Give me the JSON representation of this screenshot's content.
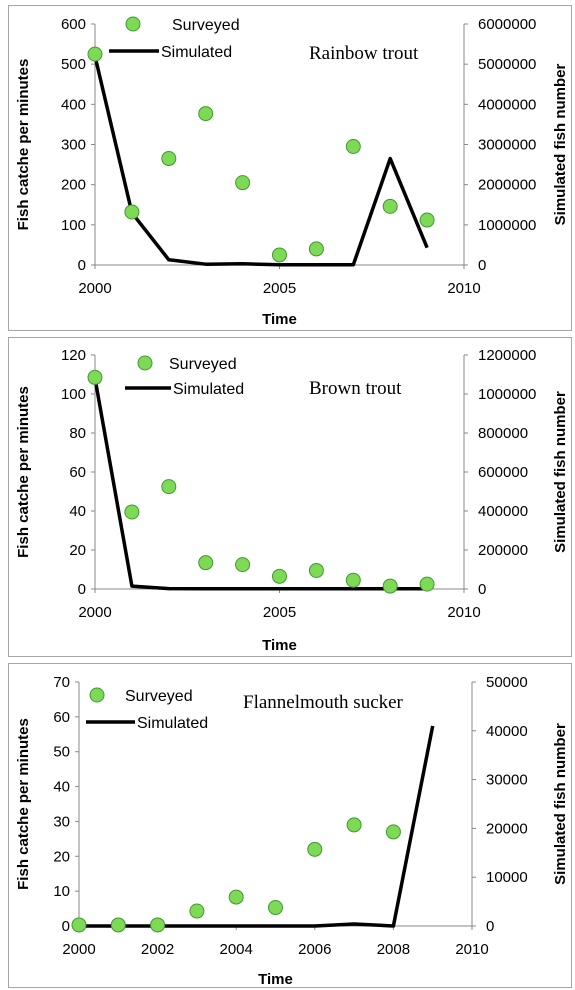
{
  "legend": {
    "surveyed": "Surveyed",
    "simulated": "Simulated"
  },
  "colors": {
    "marker_fill": "#7ed957",
    "marker_stroke": "#3f9a2f",
    "line": "#000000"
  },
  "chart_data": [
    {
      "type": "scatter+line",
      "title": "Rainbow trout",
      "xlabel": "Time",
      "ylabel": "Fish catche per minutes",
      "y2label": "Simulated fish number",
      "xlim": [
        2000,
        2010
      ],
      "xticks": [
        2000,
        2005,
        2010
      ],
      "ylim": [
        0,
        600
      ],
      "yticks": [
        0,
        100,
        200,
        300,
        400,
        500,
        600
      ],
      "y2lim": [
        0,
        6000000
      ],
      "y2ticks": [
        0,
        1000000,
        2000000,
        3000000,
        4000000,
        5000000,
        6000000
      ],
      "series": [
        {
          "name": "Surveyed",
          "kind": "scatter",
          "axis": "left",
          "x": [
            2000,
            2001,
            2002,
            2003,
            2004,
            2005,
            2006,
            2007,
            2008,
            2009
          ],
          "values": [
            525,
            132,
            265,
            377,
            205,
            25,
            40,
            295,
            146,
            112
          ]
        },
        {
          "name": "Simulated",
          "kind": "line",
          "axis": "right",
          "x": [
            2000,
            2001,
            2002,
            2003,
            2004,
            2005,
            2006,
            2007,
            2008,
            2009
          ],
          "values": [
            5200000,
            1300000,
            130000,
            20000,
            30000,
            5000,
            5000,
            5000,
            2650000,
            430000
          ]
        }
      ]
    },
    {
      "type": "scatter+line",
      "title": "Brown trout",
      "xlabel": "Time",
      "ylabel": "Fish catche per minutes",
      "y2label": "Simulated fish number",
      "xlim": [
        2000,
        2010
      ],
      "xticks": [
        2000,
        2005,
        2010
      ],
      "ylim": [
        0,
        120
      ],
      "yticks": [
        0,
        20,
        40,
        60,
        80,
        100,
        120
      ],
      "y2lim": [
        0,
        1200000
      ],
      "y2ticks": [
        0,
        200000,
        400000,
        600000,
        800000,
        1000000,
        1200000
      ],
      "series": [
        {
          "name": "Surveyed",
          "kind": "scatter",
          "axis": "left",
          "x": [
            2000,
            2001,
            2002,
            2003,
            2004,
            2005,
            2006,
            2007,
            2008,
            2009
          ],
          "values": [
            108.5,
            39.5,
            52.5,
            13.5,
            12.5,
            6.5,
            9.5,
            4.5,
            1.5,
            2.5
          ]
        },
        {
          "name": "Simulated",
          "kind": "line",
          "axis": "right",
          "x": [
            2000,
            2001,
            2002,
            2003,
            2004,
            2005,
            2006,
            2007,
            2008,
            2009
          ],
          "values": [
            1080000,
            15000,
            2000,
            1000,
            1000,
            1000,
            1000,
            1000,
            1000,
            1000
          ]
        }
      ]
    },
    {
      "type": "scatter+line",
      "title": "Flannelmouth sucker",
      "xlabel": "Time",
      "ylabel": "Fish catche per minutes",
      "y2label": "Simulated fish number",
      "xlim": [
        2000,
        2010
      ],
      "xticks": [
        2000,
        2002,
        2004,
        2006,
        2008,
        2010
      ],
      "ylim": [
        0,
        70
      ],
      "yticks": [
        0,
        10,
        20,
        30,
        40,
        50,
        60,
        70
      ],
      "y2lim": [
        0,
        50000
      ],
      "y2ticks": [
        0,
        10000,
        20000,
        30000,
        40000,
        50000
      ],
      "series": [
        {
          "name": "Surveyed",
          "kind": "scatter",
          "axis": "left",
          "x": [
            2000,
            2001,
            2002,
            2003,
            2004,
            2005,
            2006,
            2007,
            2008
          ],
          "values": [
            0.3,
            0.3,
            0.3,
            4.3,
            8.3,
            5.3,
            22.0,
            29.0,
            27.0
          ]
        },
        {
          "name": "Simulated",
          "kind": "line",
          "axis": "right",
          "x": [
            2000,
            2001,
            2002,
            2003,
            2004,
            2005,
            2006,
            2007,
            2008,
            2009
          ],
          "values": [
            0,
            0,
            0,
            0,
            0,
            0,
            0,
            400,
            0,
            41000
          ]
        }
      ]
    }
  ]
}
